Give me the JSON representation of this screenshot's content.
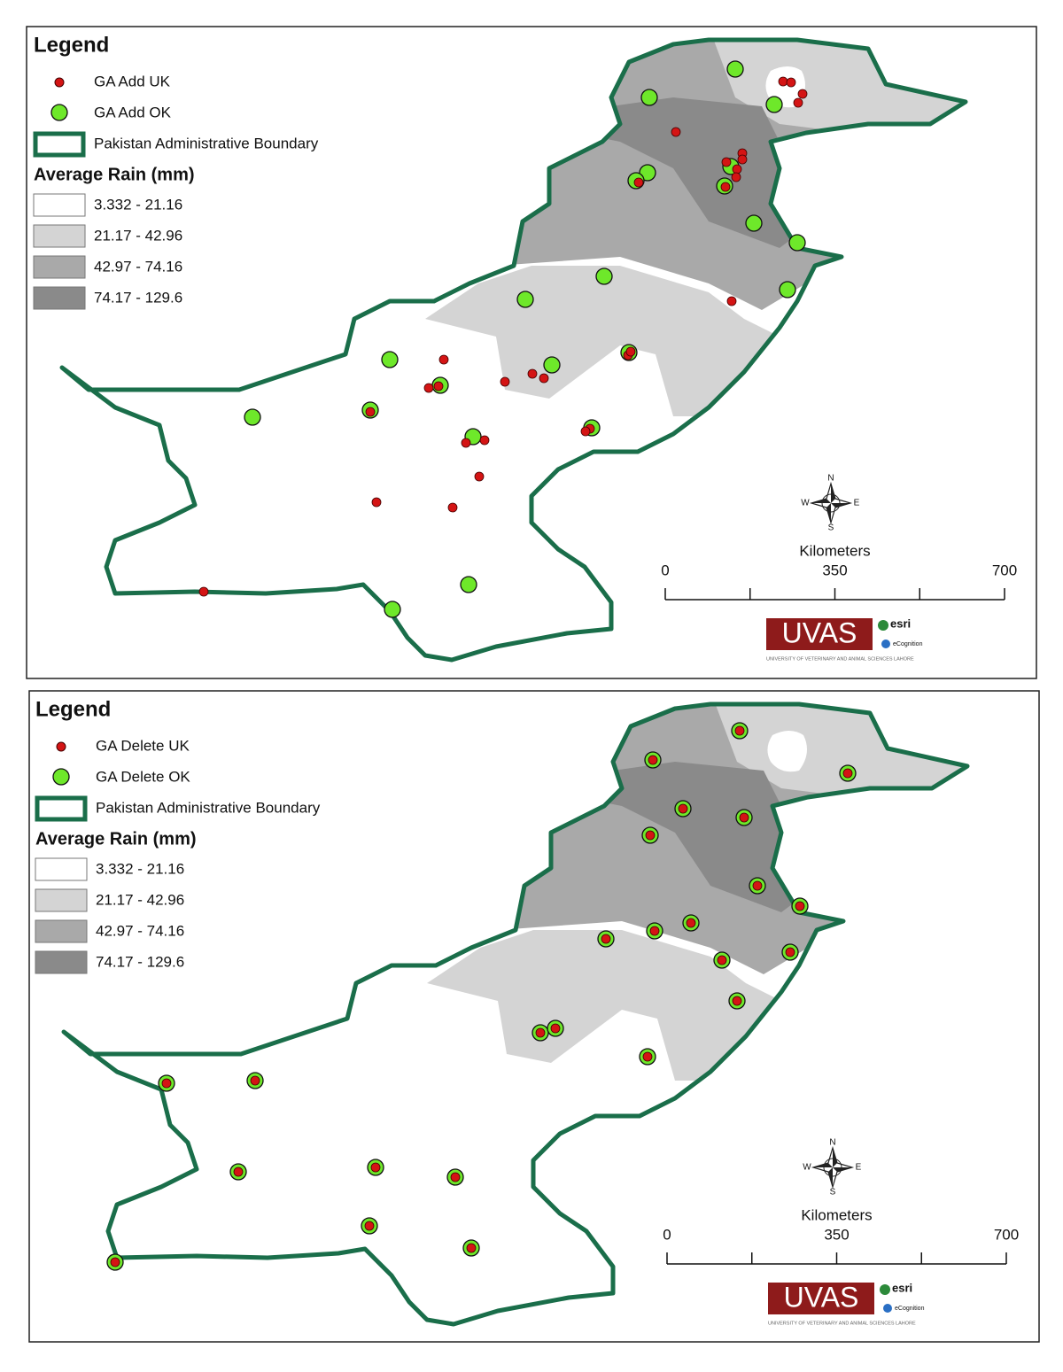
{
  "maps": [
    {
      "legend": {
        "title": "Legend",
        "items": [
          "GA Add UK",
          "GA Add OK",
          "Pakistan Administrative Boundary"
        ],
        "rain_title": "Average Rain (mm)",
        "rain_classes": [
          "3.332 - 21.16",
          "21.17 - 42.96",
          "42.97 - 74.16",
          "74.17 - 129.6"
        ]
      },
      "compass": {
        "n": "N",
        "e": "E",
        "s": "S",
        "w": "W"
      },
      "scale": {
        "unit": "Kilometers",
        "ticks": [
          0,
          350,
          700
        ]
      },
      "logo": {
        "name": "UVAS",
        "subtitle": "UNIVERSITY OF VETERINARY AND ANIMAL SCIENCES LAHORE",
        "esri": "esri",
        "ecognition": "eCognition"
      }
    },
    {
      "legend": {
        "title": "Legend",
        "items": [
          "GA Delete UK",
          "GA Delete OK",
          "Pakistan Administrative Boundary"
        ],
        "rain_title": "Average Rain (mm)",
        "rain_classes": [
          "3.332 - 21.16",
          "21.17 - 42.96",
          "42.97 - 74.16",
          "74.17 - 129.6"
        ]
      },
      "compass": {
        "n": "N",
        "e": "E",
        "s": "S",
        "w": "W"
      },
      "scale": {
        "unit": "Kilometers",
        "ticks": [
          0,
          350,
          700
        ]
      },
      "logo": {
        "name": "UVAS",
        "subtitle": "UNIVERSITY OF VETERINARY AND ANIMAL SCIENCES LAHORE",
        "esri": "esri",
        "ecognition": "eCognition"
      }
    }
  ]
}
